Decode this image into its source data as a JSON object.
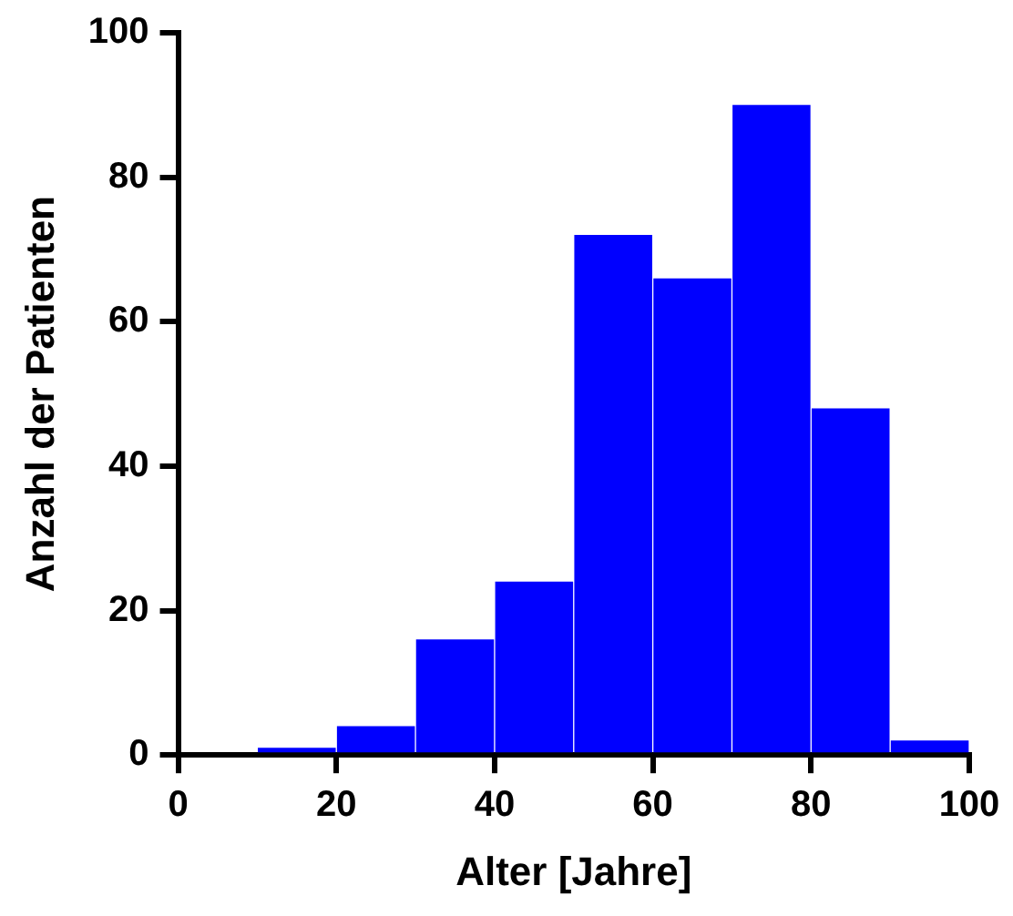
{
  "chart_data": {
    "type": "histogram",
    "xlabel": "Alter [Jahre]",
    "ylabel": "Anzahl der Patienten",
    "bins": [
      0,
      10,
      20,
      30,
      40,
      50,
      60,
      70,
      80,
      90,
      100
    ],
    "values": [
      0,
      1,
      4,
      16,
      24,
      72,
      66,
      90,
      48,
      2
    ],
    "color": "#0000ff",
    "xlim": [
      0,
      100
    ],
    "xticks": [
      0,
      20,
      40,
      60,
      80,
      100
    ],
    "ylim": [
      0,
      100
    ],
    "yticks": [
      0,
      20,
      40,
      60,
      80,
      100
    ],
    "grid": false,
    "legend": false
  }
}
